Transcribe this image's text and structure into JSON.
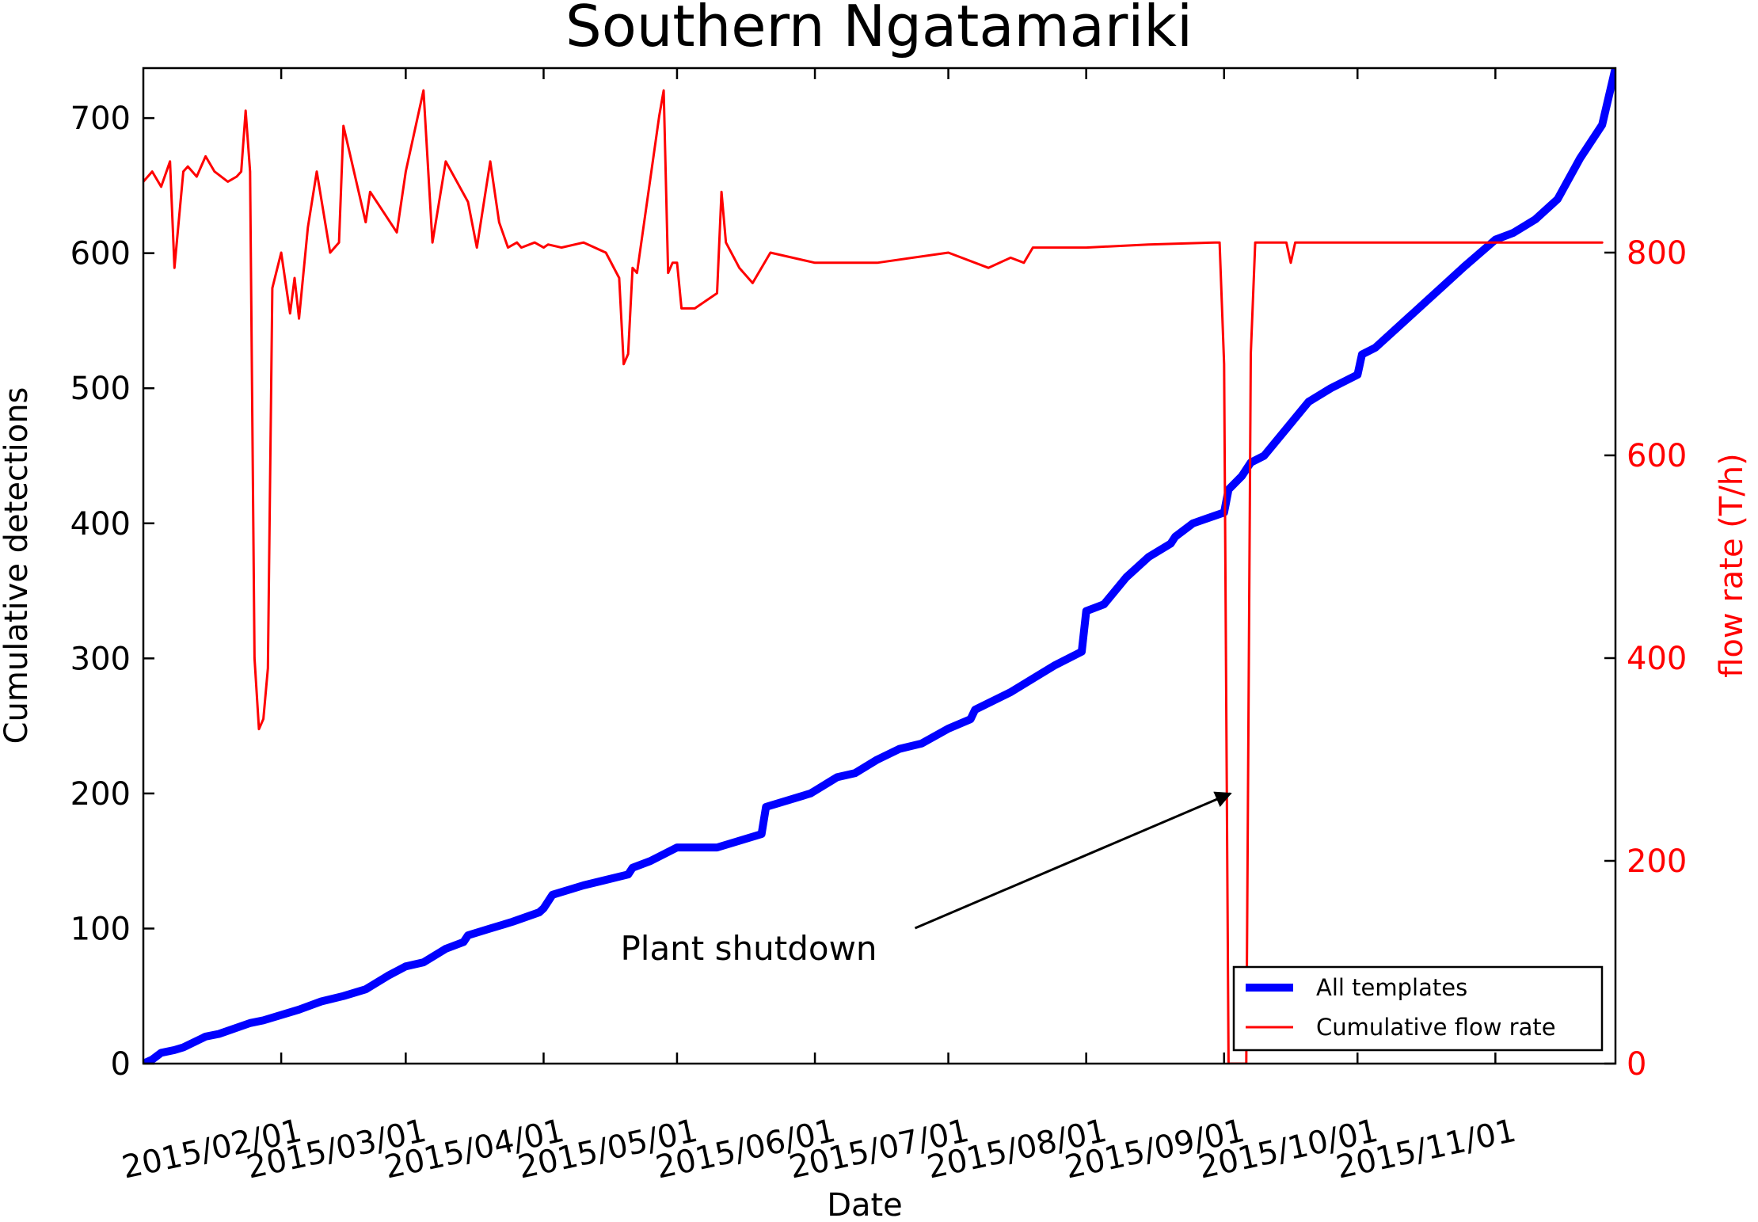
{
  "chart_data": {
    "type": "line",
    "title": "Southern Ngatamariki",
    "xlabel": "Date",
    "ylabel": "Cumulative detections",
    "y2label": "flow rate (T/h)",
    "x_range": [
      "2015-01-01",
      "2015-11-28"
    ],
    "ylim": [
      0,
      737
    ],
    "y2lim": [
      0,
      982
    ],
    "x_ticks": [
      "2015-02-01",
      "2015-03-01",
      "2015-04-01",
      "2015-05-01",
      "2015-06-01",
      "2015-07-01",
      "2015-08-01",
      "2015-09-01",
      "2015-10-01",
      "2015-11-01"
    ],
    "x_tick_labels": [
      "2015/02/01",
      "2015/03/01",
      "2015/04/01",
      "2015/05/01",
      "2015/06/01",
      "2015/07/01",
      "2015/08/01",
      "2015/09/01",
      "2015/10/01",
      "2015/11/01"
    ],
    "y_ticks": [
      0,
      100,
      200,
      300,
      400,
      500,
      600,
      700
    ],
    "y_tick_labels": [
      "0",
      "100",
      "200",
      "300",
      "400",
      "500",
      "600",
      "700"
    ],
    "y2_ticks": [
      0,
      200,
      400,
      600,
      800
    ],
    "y2_tick_labels": [
      "0",
      "200",
      "400",
      "600",
      "800"
    ],
    "grid": false,
    "legend_position": "lower-right",
    "series": [
      {
        "name": "All templates",
        "color": "#0000ff",
        "axis": "left",
        "x": [
          "2015-01-01",
          "2015-01-03",
          "2015-01-05",
          "2015-01-08",
          "2015-01-10",
          "2015-01-15",
          "2015-01-18",
          "2015-01-25",
          "2015-01-28",
          "2015-02-05",
          "2015-02-10",
          "2015-02-15",
          "2015-02-20",
          "2015-02-25",
          "2015-03-01",
          "2015-03-05",
          "2015-03-10",
          "2015-03-14",
          "2015-03-15",
          "2015-03-20",
          "2015-03-25",
          "2015-03-31",
          "2015-04-01",
          "2015-04-03",
          "2015-04-10",
          "2015-04-20",
          "2015-04-21",
          "2015-04-25",
          "2015-05-01",
          "2015-05-05",
          "2015-05-10",
          "2015-05-15",
          "2015-05-20",
          "2015-05-21",
          "2015-05-31",
          "2015-06-01",
          "2015-06-05",
          "2015-06-06",
          "2015-06-10",
          "2015-06-15",
          "2015-06-20",
          "2015-06-25",
          "2015-07-01",
          "2015-07-06",
          "2015-07-07",
          "2015-07-15",
          "2015-07-20",
          "2015-07-25",
          "2015-07-31",
          "2015-08-01",
          "2015-08-05",
          "2015-08-10",
          "2015-08-15",
          "2015-08-20",
          "2015-08-21",
          "2015-08-25",
          "2015-09-01",
          "2015-09-02",
          "2015-09-05",
          "2015-09-07",
          "2015-09-10",
          "2015-09-15",
          "2015-09-20",
          "2015-09-25",
          "2015-10-01",
          "2015-10-02",
          "2015-10-05",
          "2015-10-10",
          "2015-10-15",
          "2015-10-20",
          "2015-10-25",
          "2015-11-01",
          "2015-11-05",
          "2015-11-10",
          "2015-11-15",
          "2015-11-20",
          "2015-11-25",
          "2015-11-28"
        ],
        "y": [
          0,
          3,
          8,
          10,
          12,
          20,
          22,
          30,
          32,
          40,
          46,
          50,
          55,
          65,
          72,
          75,
          85,
          90,
          95,
          100,
          105,
          112,
          115,
          125,
          132,
          140,
          145,
          150,
          160,
          160,
          160,
          165,
          170,
          190,
          200,
          202,
          210,
          212,
          215,
          225,
          233,
          237,
          248,
          255,
          262,
          275,
          285,
          295,
          305,
          335,
          340,
          360,
          375,
          385,
          390,
          400,
          408,
          425,
          435,
          445,
          450,
          470,
          490,
          500,
          510,
          525,
          530,
          545,
          560,
          575,
          590,
          610,
          615,
          625,
          640,
          670,
          695,
          737
        ]
      },
      {
        "name": "Cumulative flow rate",
        "color": "#ff0000",
        "axis": "right",
        "x": [
          "2015-01-01",
          "2015-01-03",
          "2015-01-05",
          "2015-01-07",
          "2015-01-08",
          "2015-01-10",
          "2015-01-11",
          "2015-01-13",
          "2015-01-15",
          "2015-01-17",
          "2015-01-20",
          "2015-01-22",
          "2015-01-23",
          "2015-01-24",
          "2015-01-25",
          "2015-01-26",
          "2015-01-27",
          "2015-01-28",
          "2015-01-29",
          "2015-01-30",
          "2015-02-01",
          "2015-02-03",
          "2015-02-04",
          "2015-02-05",
          "2015-02-07",
          "2015-02-09",
          "2015-02-12",
          "2015-02-14",
          "2015-02-15",
          "2015-02-20",
          "2015-02-21",
          "2015-02-24",
          "2015-02-27",
          "2015-03-01",
          "2015-03-05",
          "2015-03-07",
          "2015-03-10",
          "2015-03-15",
          "2015-03-17",
          "2015-03-20",
          "2015-03-22",
          "2015-03-24",
          "2015-03-26",
          "2015-03-27",
          "2015-03-30",
          "2015-04-01",
          "2015-04-02",
          "2015-04-05",
          "2015-04-10",
          "2015-04-15",
          "2015-04-18",
          "2015-04-19",
          "2015-04-20",
          "2015-04-21",
          "2015-04-22",
          "2015-04-27",
          "2015-04-28",
          "2015-04-29",
          "2015-04-30",
          "2015-05-01",
          "2015-05-02",
          "2015-05-05",
          "2015-05-10",
          "2015-05-11",
          "2015-05-12",
          "2015-05-15",
          "2015-05-18",
          "2015-05-22",
          "2015-06-01",
          "2015-06-15",
          "2015-07-01",
          "2015-07-10",
          "2015-07-15",
          "2015-07-18",
          "2015-07-20",
          "2015-08-01",
          "2015-08-15",
          "2015-08-30",
          "2015-08-31",
          "2015-09-01",
          "2015-09-02",
          "2015-09-06",
          "2015-09-07",
          "2015-09-08",
          "2015-09-10",
          "2015-09-12",
          "2015-09-15",
          "2015-09-16",
          "2015-09-17",
          "2015-09-20",
          "2015-10-01",
          "2015-11-01",
          "2015-11-25"
        ],
        "y": [
          870,
          880,
          865,
          890,
          785,
          880,
          885,
          875,
          895,
          880,
          870,
          875,
          880,
          940,
          880,
          400,
          330,
          340,
          390,
          765,
          800,
          740,
          775,
          735,
          825,
          880,
          800,
          810,
          925,
          830,
          860,
          840,
          820,
          880,
          960,
          810,
          890,
          850,
          805,
          890,
          830,
          805,
          810,
          805,
          810,
          805,
          808,
          805,
          810,
          800,
          775,
          690,
          700,
          785,
          780,
          935,
          960,
          780,
          790,
          790,
          745,
          745,
          760,
          860,
          810,
          785,
          770,
          800,
          790,
          790,
          800,
          785,
          795,
          790,
          805,
          805,
          808,
          810,
          810,
          690,
          0,
          0,
          700,
          810,
          810,
          810,
          810,
          790,
          810,
          810,
          810,
          810,
          810
        ]
      }
    ],
    "annotation": {
      "text": "Plant shutdown",
      "text_x": "2015-05-10",
      "text_y": 85,
      "arrow_to_x": "2015-09-01",
      "arrow_to_y": 200
    }
  }
}
